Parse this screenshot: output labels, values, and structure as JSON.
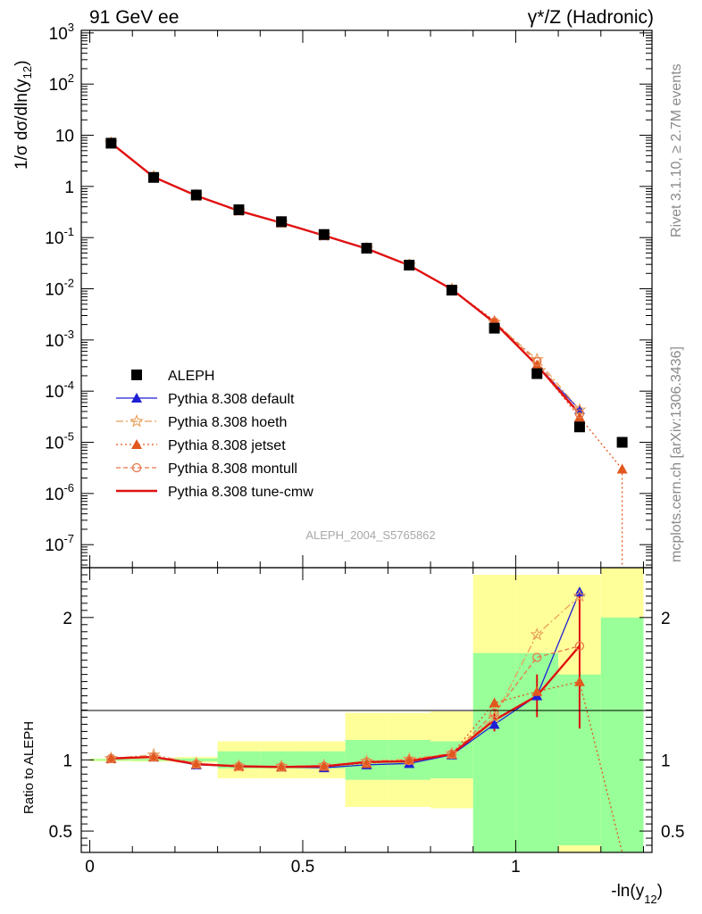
{
  "chart_data": {
    "type": "line",
    "title_left": "91 GeV ee",
    "title_right": "γ*/Z (Hadronic)",
    "ylabel_main": "1/σ dσ/dln(y12)",
    "ylabel_ratio": "Ratio to ALEPH",
    "xlabel": "-ln(y12)",
    "side_label_top": "Rivet 3.1.10, ≥ 2.7M events",
    "side_label_bottom": "mcplots.cern.ch [arXiv:1306.3436]",
    "analysis_label": "ALEPH_2004_S5765862",
    "x_ticks": [
      {
        "v": 0,
        "label": "0"
      },
      {
        "v": 0.5,
        "label": "0.5"
      },
      {
        "v": 1,
        "label": "1"
      }
    ],
    "main_y_ticks": [
      {
        "e": -7,
        "label": "10-7"
      },
      {
        "e": -6,
        "label": "10-6"
      },
      {
        "e": -5,
        "label": "10-5"
      },
      {
        "e": -4,
        "label": "10-4"
      },
      {
        "e": -3,
        "label": "10-3"
      },
      {
        "e": -2,
        "label": "10-2"
      },
      {
        "e": -1,
        "label": "10-1"
      },
      {
        "e": 0,
        "label": "1"
      },
      {
        "e": 1,
        "label": "10"
      },
      {
        "e": 2,
        "label": "102"
      },
      {
        "e": 3,
        "label": "103"
      }
    ],
    "ratio_y_ticks": [
      {
        "v": 0.5,
        "label": "0.5"
      },
      {
        "v": 1,
        "label": "1"
      },
      {
        "v": 2,
        "label": "2"
      }
    ],
    "xlim": [
      -0.02,
      1.32
    ],
    "main_log10_ylim": [
      -7.45,
      3.05
    ],
    "ratio_ylim": [
      0.35,
      2.35
    ],
    "x": [
      0.05,
      0.15,
      0.25,
      0.35,
      0.45,
      0.55,
      0.65,
      0.75,
      0.85,
      0.95,
      1.05,
      1.15,
      1.25
    ],
    "aleph": [
      7.0,
      1.5,
      0.68,
      0.35,
      0.205,
      0.115,
      0.062,
      0.029,
      0.0094,
      0.0017,
      0.00022,
      2e-05,
      1e-05
    ],
    "bands": [
      {
        "x0": 0.0,
        "x1": 0.1,
        "g": 0.005,
        "y": 0.01
      },
      {
        "x0": 0.1,
        "x1": 0.2,
        "g": 0.006,
        "y": 0.012
      },
      {
        "x0": 0.2,
        "x1": 0.3,
        "g": 0.01,
        "y": 0.02
      },
      {
        "x0": 0.3,
        "x1": 0.4,
        "g": 0.06,
        "y": 0.13
      },
      {
        "x0": 0.4,
        "x1": 0.5,
        "g": 0.06,
        "y": 0.13
      },
      {
        "x0": 0.5,
        "x1": 0.6,
        "g": 0.06,
        "y": 0.13
      },
      {
        "x0": 0.6,
        "x1": 0.7,
        "g": 0.14,
        "y": 0.33
      },
      {
        "x0": 0.7,
        "x1": 0.8,
        "g": 0.14,
        "y": 0.33
      },
      {
        "x0": 0.8,
        "x1": 0.9,
        "g": 0.13,
        "y": 0.34
      },
      {
        "x0": 0.9,
        "x1": 1.0,
        "g": 0.75,
        "y": 1.3
      },
      {
        "x0": 1.0,
        "x1": 1.1,
        "g": 0.75,
        "y": 1.3
      },
      {
        "x0": 1.1,
        "x1": 1.2,
        "g": 0.6,
        "y": 1.3
      },
      {
        "x0": 1.2,
        "x1": 1.3,
        "g": 1.0,
        "y": 2.0
      }
    ],
    "series": [
      {
        "name": "ALEPH",
        "color": "#000000",
        "marker": "square"
      },
      {
        "name": "Pythia 8.308 default",
        "color": "#1f1fd6",
        "marker": "triangle",
        "dash": "",
        "ratio": [
          1.01,
          1.02,
          0.965,
          0.955,
          0.95,
          0.945,
          0.965,
          0.975,
          1.035,
          1.25,
          1.45,
          2.18
        ]
      },
      {
        "name": "Pythia 8.308 hoeth",
        "color": "#e89f5a",
        "marker": "star",
        "dash": "8,3,2,3",
        "ratio": [
          1.01,
          1.035,
          0.975,
          0.955,
          0.955,
          0.96,
          0.99,
          1.005,
          1.045,
          1.3,
          1.88,
          2.15
        ]
      },
      {
        "name": "Pythia 8.308 jetset",
        "color": "#e2571e",
        "marker": "filltri",
        "dash": "2,3",
        "ratio": [
          1.01,
          1.02,
          0.97,
          0.955,
          0.95,
          0.955,
          0.975,
          1.0,
          1.04,
          1.4,
          1.48,
          1.55,
          0.3
        ]
      },
      {
        "name": "Pythia 8.308 montull",
        "color": "#e57848",
        "marker": "circle",
        "dash": "5,3",
        "ratio": [
          1.01,
          1.02,
          0.97,
          0.955,
          0.95,
          0.955,
          0.985,
          0.995,
          1.04,
          1.33,
          1.72,
          1.8
        ]
      },
      {
        "name": "Pythia 8.308 tune-cmw",
        "color": "#e01010",
        "marker": "none",
        "dash": "",
        "ratio": [
          1.01,
          1.02,
          0.97,
          0.955,
          0.95,
          0.955,
          0.985,
          0.99,
          1.04,
          1.28,
          1.45,
          1.8
        ]
      }
    ]
  }
}
